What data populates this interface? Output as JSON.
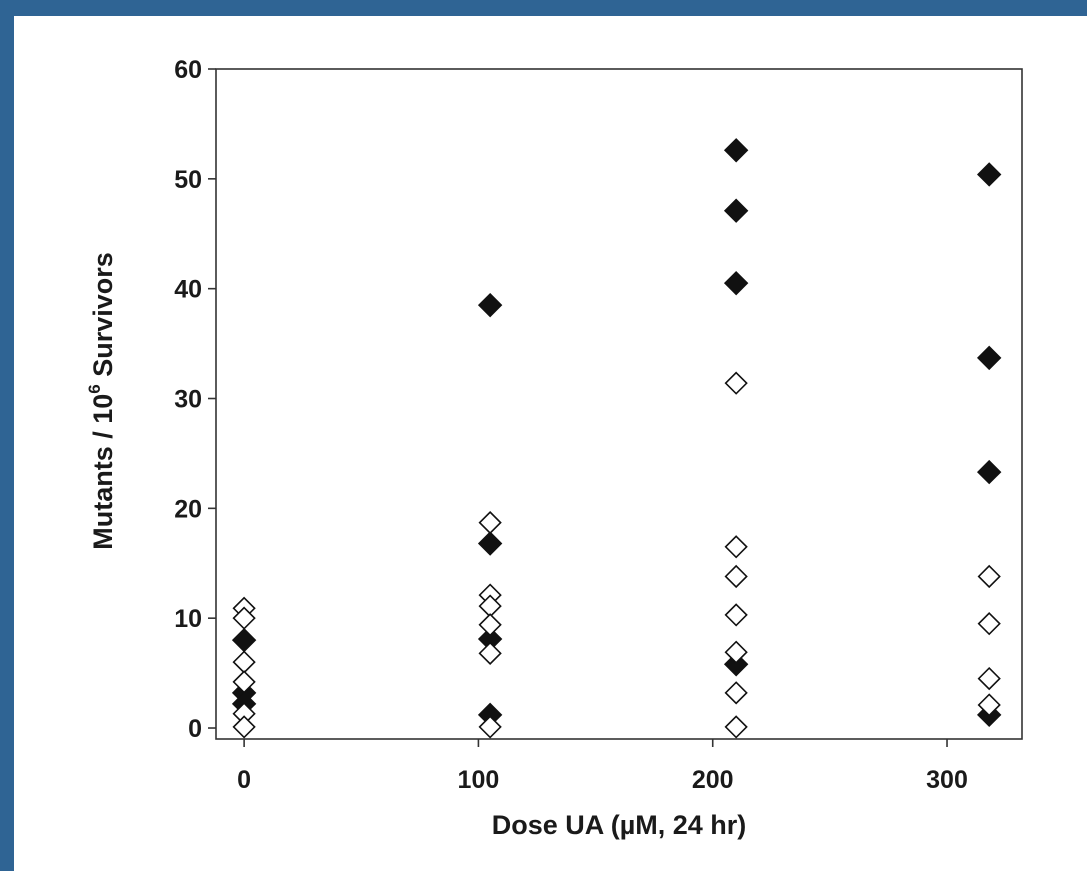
{
  "chart_data": {
    "type": "scatter",
    "title": "",
    "xlabel": "Dose UA (µM, 24 hr)",
    "ylabel": {
      "prefix": "Mutants / 10",
      "superscript": "6",
      "suffix": " Survivors"
    },
    "xlim": [
      -12,
      332
    ],
    "ylim": [
      -1,
      60
    ],
    "xticks": [
      0,
      100,
      200,
      300
    ],
    "yticks": [
      0,
      10,
      20,
      30,
      40,
      50,
      60
    ],
    "grid": false,
    "legend": "none",
    "series": [
      {
        "marker": "filled-diamond",
        "color": "#111111",
        "points": [
          {
            "x": 0,
            "y": 8
          },
          {
            "x": 0,
            "y": 3.2
          },
          {
            "x": 0,
            "y": 2.2
          },
          {
            "x": 105,
            "y": 38.5
          },
          {
            "x": 105,
            "y": 16.8
          },
          {
            "x": 105,
            "y": 8.1
          },
          {
            "x": 105,
            "y": 1.2
          },
          {
            "x": 210,
            "y": 52.6
          },
          {
            "x": 210,
            "y": 47.1
          },
          {
            "x": 210,
            "y": 40.5
          },
          {
            "x": 210,
            "y": 5.8
          },
          {
            "x": 318,
            "y": 50.4
          },
          {
            "x": 318,
            "y": 33.7
          },
          {
            "x": 318,
            "y": 23.3
          },
          {
            "x": 318,
            "y": 1.2
          }
        ]
      },
      {
        "marker": "open-diamond",
        "color": "#111111",
        "points": [
          {
            "x": 0,
            "y": 10.9
          },
          {
            "x": 0,
            "y": 10
          },
          {
            "x": 0,
            "y": 6
          },
          {
            "x": 0,
            "y": 4.2
          },
          {
            "x": 0,
            "y": 1.3
          },
          {
            "x": 0,
            "y": 0.1
          },
          {
            "x": 105,
            "y": 18.7
          },
          {
            "x": 105,
            "y": 12.1
          },
          {
            "x": 105,
            "y": 11.1
          },
          {
            "x": 105,
            "y": 9.4
          },
          {
            "x": 105,
            "y": 6.8
          },
          {
            "x": 105,
            "y": 0.1
          },
          {
            "x": 210,
            "y": 31.4
          },
          {
            "x": 210,
            "y": 16.5
          },
          {
            "x": 210,
            "y": 13.8
          },
          {
            "x": 210,
            "y": 10.3
          },
          {
            "x": 210,
            "y": 6.9
          },
          {
            "x": 210,
            "y": 3.2
          },
          {
            "x": 210,
            "y": 0.1
          },
          {
            "x": 318,
            "y": 13.8
          },
          {
            "x": 318,
            "y": 9.5
          },
          {
            "x": 318,
            "y": 4.5
          },
          {
            "x": 318,
            "y": 2.1
          }
        ]
      }
    ]
  }
}
